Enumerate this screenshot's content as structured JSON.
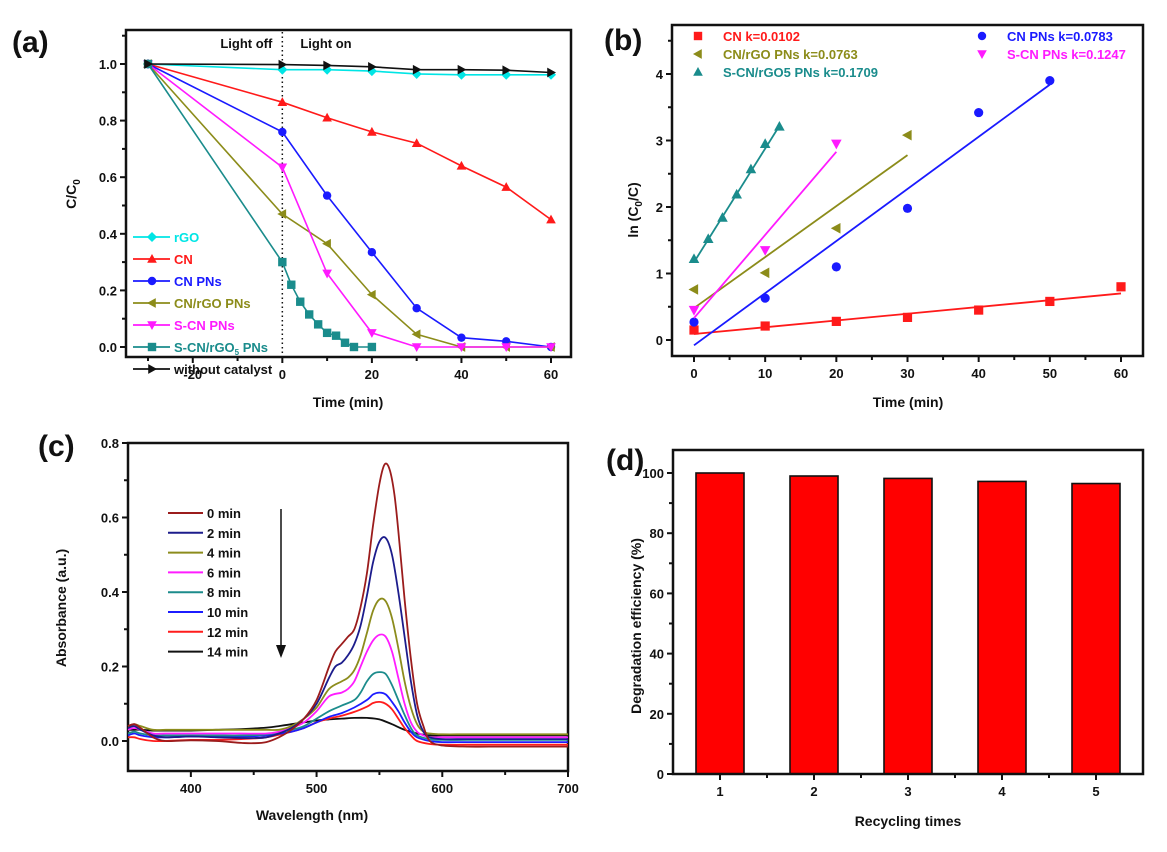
{
  "chart_data": [
    {
      "panel": "(a)",
      "type": "line",
      "xlabel": "Time (min)",
      "ylabel": "C/C0",
      "xlim": [
        -35,
        64
      ],
      "ylim": [
        -0.07,
        1.13
      ],
      "xticks": [
        -20,
        0,
        20,
        40,
        60
      ],
      "yticks": [
        0.0,
        0.2,
        0.4,
        0.6,
        0.8,
        1.0
      ],
      "ytick_labels": [
        "0.0",
        "0.2",
        "0.4",
        "0.6",
        "0.8",
        "1.0"
      ],
      "grid": false,
      "legend_position": "left",
      "annotations": [
        {
          "text": "Light off",
          "x": -8
        },
        {
          "text": "Light on",
          "x": 10
        }
      ],
      "divider_x": 0,
      "series": [
        {
          "name": "rGO",
          "color": "#00e5e5",
          "marker": "diamond",
          "x": [
            -30,
            0,
            10,
            20,
            30,
            40,
            50,
            60
          ],
          "y": [
            1.0,
            0.98,
            0.98,
            0.975,
            0.965,
            0.962,
            0.962,
            0.962
          ]
        },
        {
          "name": "CN",
          "color": "#ff1a1a",
          "marker": "triangle-up",
          "x": [
            -30,
            0,
            10,
            20,
            30,
            40,
            50,
            60
          ],
          "y": [
            1.0,
            0.865,
            0.81,
            0.76,
            0.72,
            0.64,
            0.565,
            0.45
          ]
        },
        {
          "name": "CN PNs",
          "color": "#1a1aff",
          "marker": "circle",
          "x": [
            -30,
            0,
            10,
            20,
            30,
            40,
            50,
            60
          ],
          "y": [
            1.0,
            0.76,
            0.535,
            0.335,
            0.137,
            0.033,
            0.02,
            0.0
          ]
        },
        {
          "name": "CN/rGO PNs",
          "color": "#8c8c1a",
          "marker": "triangle-left",
          "x": [
            -30,
            0,
            10,
            20,
            30,
            40,
            50,
            60
          ],
          "y": [
            1.0,
            0.47,
            0.365,
            0.185,
            0.045,
            0.0,
            0.0,
            0.0
          ]
        },
        {
          "name": "S-CN PNs",
          "color": "#ff1aff",
          "marker": "triangle-down",
          "x": [
            -30,
            0,
            10,
            20,
            30,
            40,
            50,
            60
          ],
          "y": [
            1.0,
            0.635,
            0.26,
            0.05,
            0.0,
            0.0,
            0.0,
            0.0
          ]
        },
        {
          "name": "S-CN/rGO5 PNs",
          "color": "#1a8c8c",
          "marker": "square",
          "x": [
            -30,
            0,
            2,
            4,
            6,
            8,
            10,
            12,
            14,
            16,
            20
          ],
          "y": [
            1.0,
            0.3,
            0.22,
            0.16,
            0.115,
            0.08,
            0.05,
            0.04,
            0.015,
            0.0,
            0.0
          ]
        },
        {
          "name": "without catalyst",
          "color": "#111111",
          "marker": "triangle-right",
          "x": [
            -30,
            0,
            10,
            20,
            30,
            40,
            50,
            60
          ],
          "y": [
            1.0,
            0.998,
            0.995,
            0.99,
            0.98,
            0.98,
            0.978,
            0.97
          ]
        }
      ]
    },
    {
      "panel": "(b)",
      "type": "scatter",
      "xlabel": "Time (min)",
      "ylabel": "ln (C0/C)",
      "xlim": [
        -3,
        63
      ],
      "ylim": [
        -0.24,
        4.74
      ],
      "xticks": [
        0,
        10,
        20,
        30,
        40,
        50,
        60
      ],
      "yticks": [
        0,
        1,
        2,
        3,
        4
      ],
      "grid": false,
      "legend_position": "top",
      "series": [
        {
          "name": "CN k=0.0102",
          "color": "#ff1a1a",
          "marker": "square",
          "x": [
            0,
            10,
            20,
            30,
            40,
            50,
            60
          ],
          "y": [
            0.15,
            0.21,
            0.28,
            0.34,
            0.45,
            0.58,
            0.8
          ],
          "fit": {
            "x": [
              0,
              60
            ],
            "y": [
              0.09,
              0.7
            ]
          }
        },
        {
          "name": "CN PNs k=0.0783",
          "color": "#1a1aff",
          "marker": "circle",
          "x": [
            0,
            10,
            20,
            30,
            40,
            50
          ],
          "y": [
            0.27,
            0.63,
            1.1,
            1.98,
            3.42,
            3.9
          ],
          "fit": {
            "x": [
              0,
              50
            ],
            "y": [
              -0.08,
              3.84
            ]
          }
        },
        {
          "name": "CN/rGO PNs k=0.0763",
          "color": "#8c8c1a",
          "marker": "triangle-left",
          "x": [
            0,
            10,
            20,
            30
          ],
          "y": [
            0.76,
            1.01,
            1.68,
            3.08
          ],
          "fit": {
            "x": [
              0,
              30
            ],
            "y": [
              0.48,
              2.78
            ]
          }
        },
        {
          "name": "S-CN PNs k=0.1247",
          "color": "#ff1aff",
          "marker": "triangle-down",
          "x": [
            0,
            10,
            20
          ],
          "y": [
            0.45,
            1.35,
            2.95
          ],
          "fit": {
            "x": [
              0,
              20
            ],
            "y": [
              0.33,
              2.83
            ]
          }
        },
        {
          "name": "S-CN/rGO5 PNs k=0.1709",
          "color": "#1a8c8c",
          "marker": "triangle-up",
          "x": [
            0,
            2,
            4,
            6,
            8,
            10,
            12
          ],
          "y": [
            1.22,
            1.52,
            1.84,
            2.19,
            2.57,
            2.95,
            3.21
          ],
          "fit": {
            "x": [
              0,
              12
            ],
            "y": [
              1.17,
              3.22
            ]
          }
        }
      ]
    },
    {
      "panel": "(c)",
      "type": "line",
      "xlabel": "Wavelength (nm)",
      "ylabel": "Absorbance (a.u.)",
      "xlim": [
        350,
        700
      ],
      "ylim": [
        -0.08,
        0.8
      ],
      "xticks": [
        400,
        500,
        600,
        700
      ],
      "yticks": [
        0.0,
        0.2,
        0.4,
        0.6,
        0.8
      ],
      "ytick_labels": [
        "0.0",
        "0.2",
        "0.4",
        "0.6",
        "0.8"
      ],
      "grid": false,
      "legend_position": "upper-left",
      "arrow": "downward (decreasing absorbance with time)",
      "series": [
        {
          "name": "0 min",
          "color": "#9b1c1c",
          "x": [
            350,
            355,
            360,
            370,
            380,
            400,
            420,
            440,
            450,
            460,
            470,
            480,
            490,
            500,
            510,
            515,
            520,
            525,
            530,
            535,
            540,
            545,
            550,
            554,
            558,
            562,
            566,
            570,
            575,
            580,
            585,
            590,
            600,
            620,
            650,
            700
          ],
          "y": [
            0.04,
            0.045,
            0.035,
            0.01,
            0.0,
            0.002,
            0.0,
            -0.005,
            -0.006,
            -0.003,
            0.01,
            0.03,
            0.06,
            0.11,
            0.2,
            0.24,
            0.26,
            0.28,
            0.3,
            0.36,
            0.45,
            0.58,
            0.69,
            0.742,
            0.73,
            0.66,
            0.53,
            0.38,
            0.22,
            0.1,
            0.04,
            0.0,
            -0.012,
            -0.015,
            -0.015,
            -0.015
          ]
        },
        {
          "name": "2 min",
          "color": "#1c1c8c",
          "x": [
            350,
            355,
            360,
            370,
            380,
            400,
            420,
            440,
            450,
            460,
            470,
            480,
            490,
            500,
            510,
            515,
            520,
            525,
            530,
            535,
            540,
            545,
            550,
            555,
            560,
            565,
            570,
            575,
            580,
            585,
            590,
            600,
            620,
            650,
            700
          ],
          "y": [
            0.035,
            0.04,
            0.03,
            0.015,
            0.01,
            0.012,
            0.01,
            0.008,
            0.008,
            0.01,
            0.02,
            0.035,
            0.06,
            0.1,
            0.17,
            0.2,
            0.21,
            0.23,
            0.26,
            0.31,
            0.39,
            0.48,
            0.535,
            0.545,
            0.5,
            0.4,
            0.28,
            0.16,
            0.07,
            0.025,
            0.01,
            0.005,
            0.005,
            0.005,
            0.005
          ]
        },
        {
          "name": "4 min",
          "color": "#8c8c1c",
          "x": [
            350,
            355,
            360,
            370,
            380,
            400,
            420,
            440,
            460,
            470,
            480,
            490,
            500,
            510,
            520,
            525,
            530,
            535,
            540,
            545,
            550,
            555,
            560,
            565,
            570,
            575,
            580,
            585,
            590,
            600,
            620,
            650,
            700
          ],
          "y": [
            0.04,
            0.045,
            0.04,
            0.03,
            0.03,
            0.03,
            0.03,
            0.03,
            0.03,
            0.03,
            0.04,
            0.06,
            0.09,
            0.14,
            0.16,
            0.17,
            0.19,
            0.23,
            0.29,
            0.35,
            0.38,
            0.375,
            0.33,
            0.25,
            0.16,
            0.09,
            0.045,
            0.025,
            0.02,
            0.018,
            0.018,
            0.018,
            0.018
          ]
        },
        {
          "name": "6 min",
          "color": "#ff1cff",
          "x": [
            350,
            355,
            360,
            370,
            380,
            400,
            420,
            440,
            460,
            470,
            480,
            490,
            500,
            510,
            520,
            525,
            530,
            535,
            540,
            545,
            550,
            555,
            560,
            565,
            570,
            575,
            580,
            585,
            590,
            600,
            620,
            650,
            700
          ],
          "y": [
            0.03,
            0.035,
            0.03,
            0.02,
            0.02,
            0.02,
            0.02,
            0.02,
            0.02,
            0.025,
            0.035,
            0.05,
            0.08,
            0.12,
            0.13,
            0.14,
            0.16,
            0.2,
            0.24,
            0.27,
            0.285,
            0.28,
            0.24,
            0.17,
            0.1,
            0.05,
            0.025,
            0.015,
            0.01,
            0.01,
            0.01,
            0.01,
            0.01
          ]
        },
        {
          "name": "8 min",
          "color": "#1c8c8c",
          "x": [
            350,
            355,
            360,
            370,
            380,
            400,
            420,
            440,
            460,
            480,
            490,
            500,
            510,
            520,
            530,
            535,
            540,
            545,
            550,
            555,
            560,
            565,
            570,
            575,
            580,
            590,
            600,
            620,
            650,
            700
          ],
          "y": [
            0.02,
            0.025,
            0.02,
            0.015,
            0.015,
            0.015,
            0.015,
            0.015,
            0.018,
            0.03,
            0.04,
            0.06,
            0.08,
            0.095,
            0.11,
            0.13,
            0.16,
            0.18,
            0.185,
            0.18,
            0.15,
            0.11,
            0.07,
            0.035,
            0.015,
            0.005,
            0.003,
            0.003,
            0.003,
            0.003
          ]
        },
        {
          "name": "10 min",
          "color": "#1c1cff",
          "x": [
            350,
            355,
            360,
            370,
            380,
            400,
            420,
            440,
            460,
            480,
            490,
            500,
            510,
            520,
            530,
            540,
            545,
            550,
            555,
            560,
            565,
            570,
            575,
            580,
            590,
            600,
            620,
            650,
            700
          ],
          "y": [
            0.015,
            0.02,
            0.015,
            0.01,
            0.01,
            0.012,
            0.012,
            0.012,
            0.015,
            0.025,
            0.035,
            0.05,
            0.065,
            0.075,
            0.09,
            0.11,
            0.125,
            0.13,
            0.125,
            0.105,
            0.08,
            0.05,
            0.025,
            0.01,
            0.0,
            -0.003,
            -0.003,
            -0.003,
            -0.003
          ]
        },
        {
          "name": "12 min",
          "color": "#ff1c1c",
          "x": [
            350,
            355,
            360,
            370,
            380,
            400,
            420,
            440,
            460,
            480,
            490,
            500,
            510,
            520,
            530,
            540,
            545,
            550,
            555,
            560,
            565,
            570,
            575,
            580,
            590,
            600,
            620,
            650,
            700
          ],
          "y": [
            0.01,
            0.01,
            0.005,
            0.0,
            0.0,
            0.003,
            0.003,
            0.005,
            0.01,
            0.025,
            0.035,
            0.05,
            0.06,
            0.068,
            0.078,
            0.092,
            0.102,
            0.105,
            0.1,
            0.085,
            0.06,
            0.035,
            0.015,
            0.0,
            -0.008,
            -0.01,
            -0.01,
            -0.01,
            -0.01
          ]
        },
        {
          "name": "14 min",
          "color": "#111111",
          "x": [
            350,
            355,
            360,
            370,
            380,
            400,
            420,
            440,
            460,
            470,
            480,
            490,
            500,
            510,
            520,
            530,
            540,
            550,
            560,
            570,
            580,
            590,
            600,
            620,
            650,
            700
          ],
          "y": [
            0.03,
            0.03,
            0.03,
            0.028,
            0.028,
            0.028,
            0.03,
            0.032,
            0.036,
            0.04,
            0.045,
            0.05,
            0.055,
            0.058,
            0.06,
            0.062,
            0.062,
            0.058,
            0.045,
            0.03,
            0.02,
            0.015,
            0.015,
            0.015,
            0.015,
            0.015
          ]
        }
      ]
    },
    {
      "panel": "(d)",
      "type": "bar",
      "xlabel": "Recycling times",
      "ylabel": "Degradation efficiency (%)",
      "categories": [
        "1",
        "2",
        "3",
        "4",
        "5"
      ],
      "values": [
        100,
        99.0,
        98.2,
        97.2,
        96.5
      ],
      "ylim": [
        0,
        107.5
      ],
      "yticks": [
        0,
        20,
        40,
        60,
        80,
        100
      ],
      "bar_color": "#ff0000",
      "grid": false
    }
  ]
}
